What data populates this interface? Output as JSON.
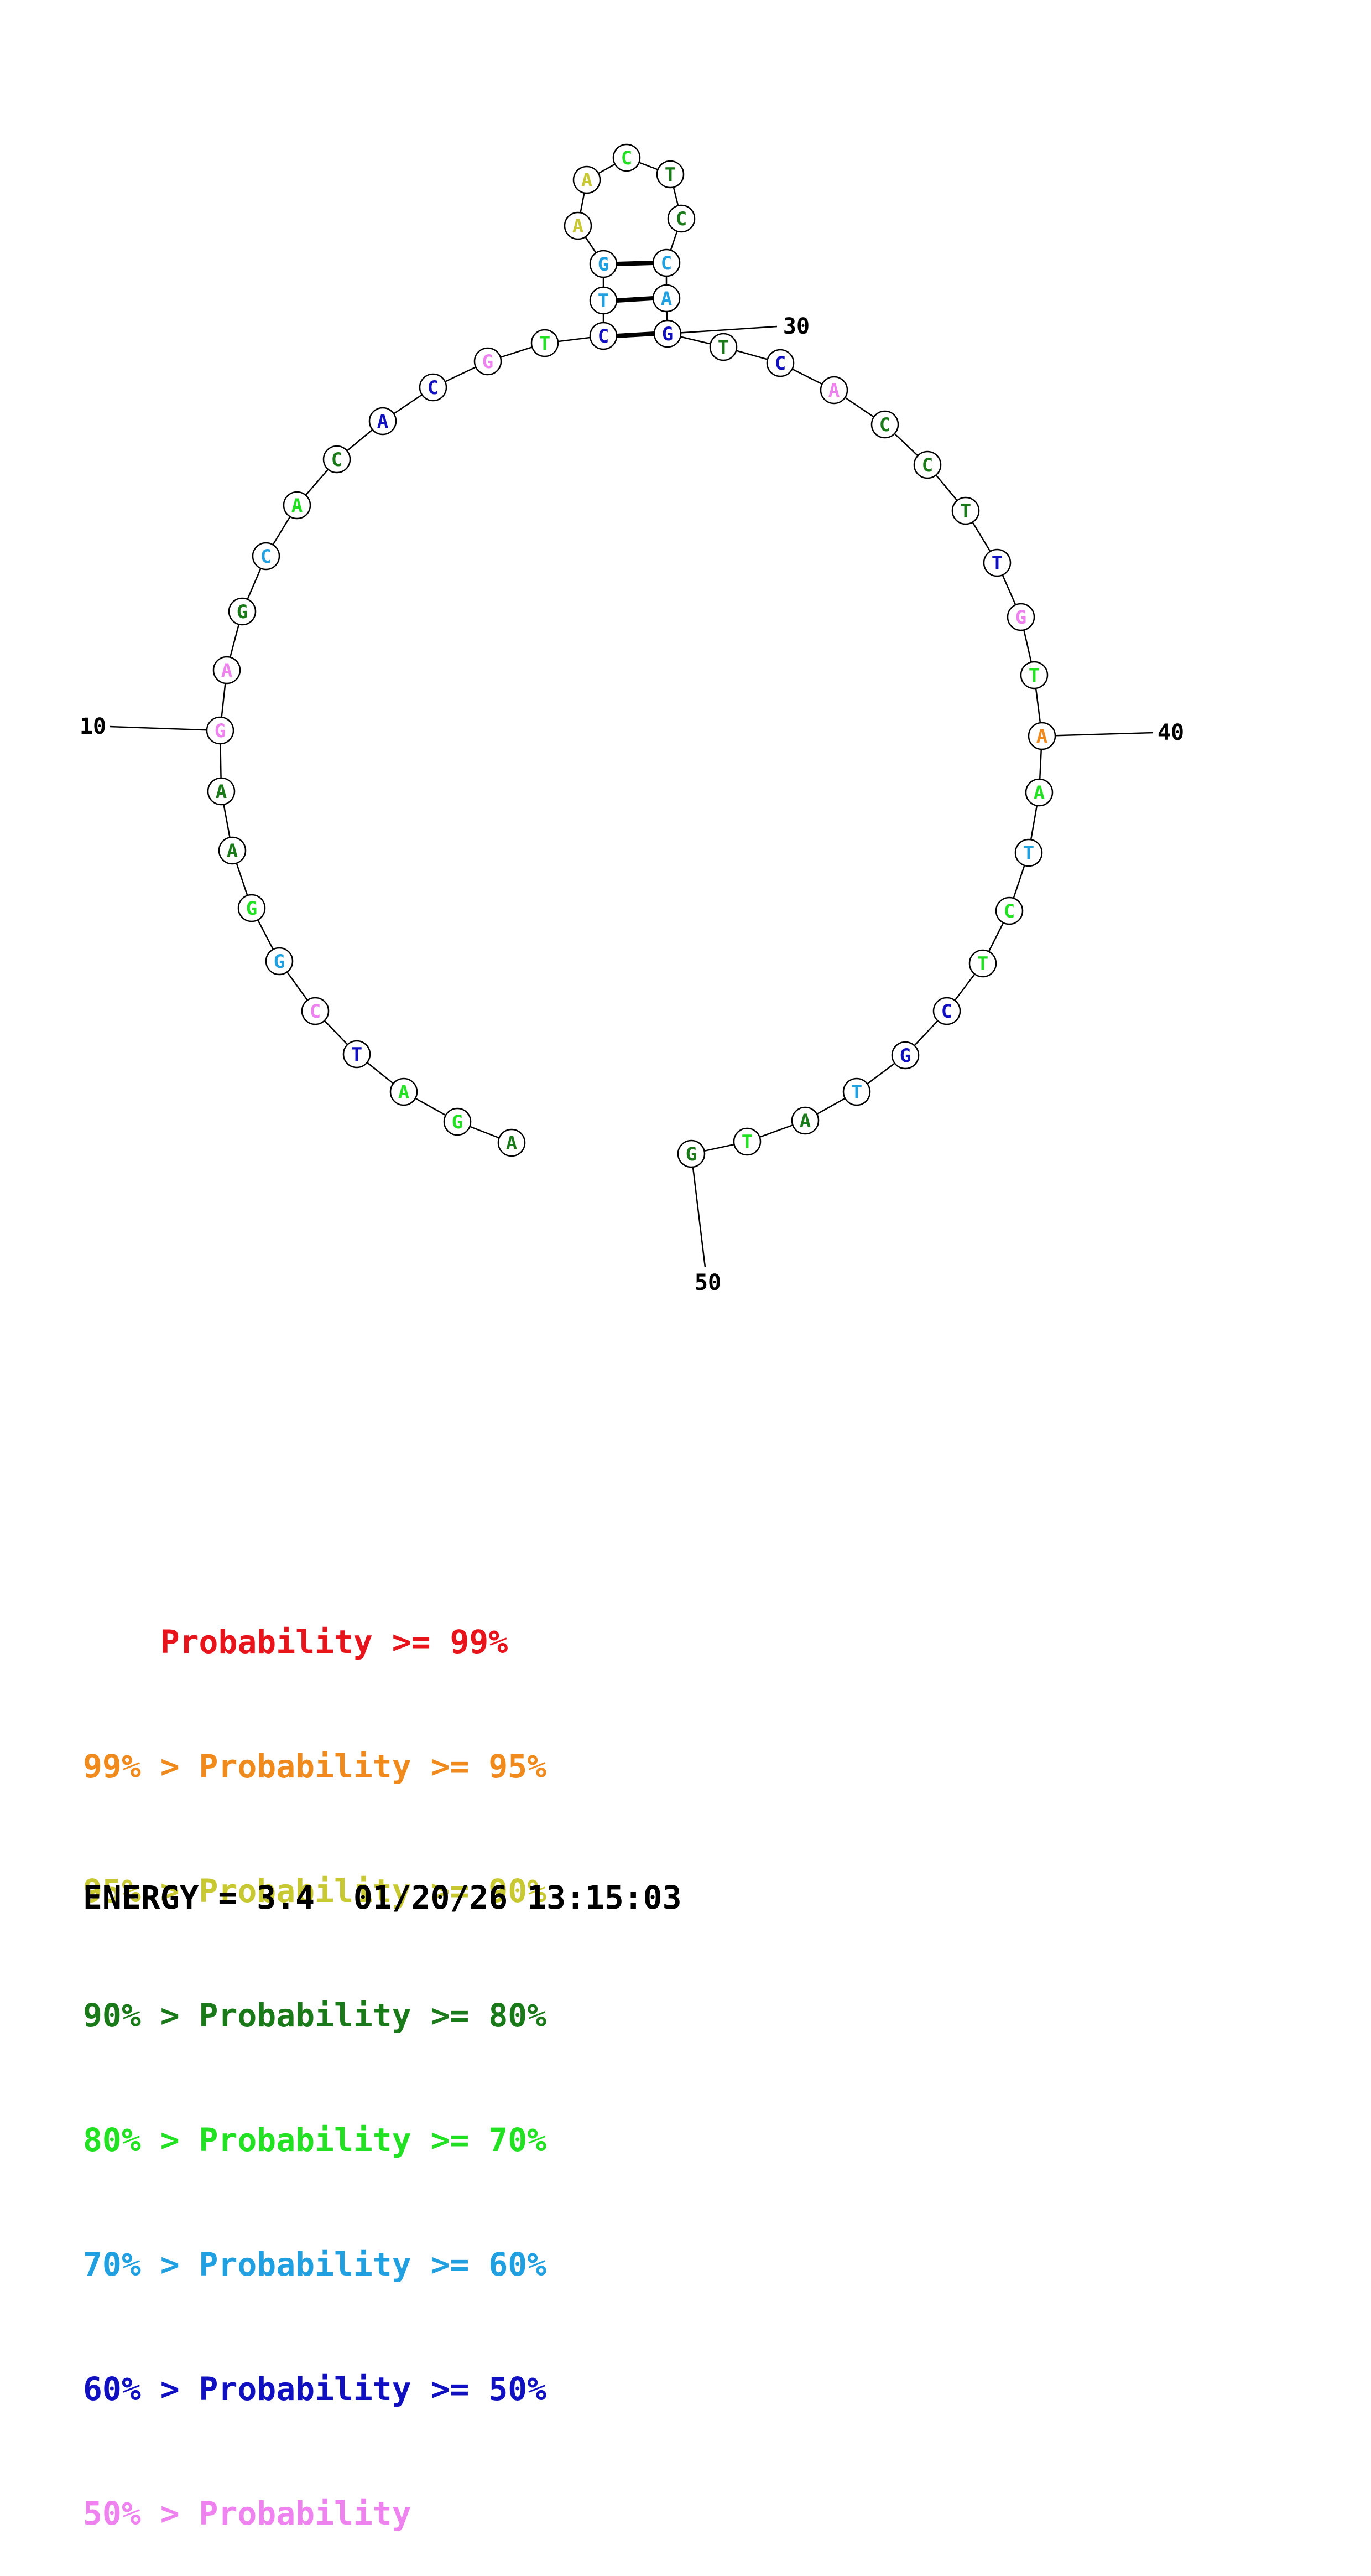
{
  "colors": {
    "p99": "#e8141c",
    "p95": "#f08a1c",
    "p90": "#c8c832",
    "p80": "#1a7a1a",
    "p70": "#22e022",
    "p60": "#20a0e0",
    "p50": "#1010c0",
    "plow": "#ee82ee"
  },
  "structure": {
    "nucleotides": [
      {
        "n": 1,
        "base": "A",
        "color": "p80"
      },
      {
        "n": 2,
        "base": "G",
        "color": "p70"
      },
      {
        "n": 3,
        "base": "A",
        "color": "p70"
      },
      {
        "n": 4,
        "base": "T",
        "color": "p50"
      },
      {
        "n": 5,
        "base": "C",
        "color": "plow"
      },
      {
        "n": 6,
        "base": "G",
        "color": "p60"
      },
      {
        "n": 7,
        "base": "G",
        "color": "p70"
      },
      {
        "n": 8,
        "base": "A",
        "color": "p80"
      },
      {
        "n": 9,
        "base": "A",
        "color": "p80"
      },
      {
        "n": 10,
        "base": "G",
        "color": "plow"
      },
      {
        "n": 11,
        "base": "A",
        "color": "plow"
      },
      {
        "n": 12,
        "base": "G",
        "color": "p80"
      },
      {
        "n": 13,
        "base": "C",
        "color": "p60"
      },
      {
        "n": 14,
        "base": "A",
        "color": "p70"
      },
      {
        "n": 15,
        "base": "C",
        "color": "p80"
      },
      {
        "n": 16,
        "base": "A",
        "color": "p50"
      },
      {
        "n": 17,
        "base": "C",
        "color": "p50"
      },
      {
        "n": 18,
        "base": "G",
        "color": "plow"
      },
      {
        "n": 19,
        "base": "T",
        "color": "p70"
      },
      {
        "n": 20,
        "base": "C",
        "color": "p50"
      },
      {
        "n": 21,
        "base": "T",
        "color": "p60"
      },
      {
        "n": 22,
        "base": "G",
        "color": "p60"
      },
      {
        "n": 23,
        "base": "A",
        "color": "p90"
      },
      {
        "n": 24,
        "base": "A",
        "color": "p90"
      },
      {
        "n": 25,
        "base": "C",
        "color": "p70"
      },
      {
        "n": 26,
        "base": "T",
        "color": "p80"
      },
      {
        "n": 27,
        "base": "C",
        "color": "p80"
      },
      {
        "n": 28,
        "base": "C",
        "color": "p60"
      },
      {
        "n": 29,
        "base": "A",
        "color": "p60"
      },
      {
        "n": 30,
        "base": "G",
        "color": "p50"
      },
      {
        "n": 31,
        "base": "T",
        "color": "p80"
      },
      {
        "n": 32,
        "base": "C",
        "color": "p50"
      },
      {
        "n": 33,
        "base": "A",
        "color": "plow"
      },
      {
        "n": 34,
        "base": "C",
        "color": "p80"
      },
      {
        "n": 35,
        "base": "C",
        "color": "p80"
      },
      {
        "n": 36,
        "base": "T",
        "color": "p80"
      },
      {
        "n": 37,
        "base": "T",
        "color": "p50"
      },
      {
        "n": 38,
        "base": "G",
        "color": "plow"
      },
      {
        "n": 39,
        "base": "T",
        "color": "p70"
      },
      {
        "n": 40,
        "base": "A",
        "color": "p95"
      },
      {
        "n": 41,
        "base": "A",
        "color": "p70"
      },
      {
        "n": 42,
        "base": "T",
        "color": "p60"
      },
      {
        "n": 43,
        "base": "C",
        "color": "p70"
      },
      {
        "n": 44,
        "base": "T",
        "color": "p70"
      },
      {
        "n": 45,
        "base": "C",
        "color": "p50"
      },
      {
        "n": 46,
        "base": "G",
        "color": "p50"
      },
      {
        "n": 47,
        "base": "T",
        "color": "p60"
      },
      {
        "n": 48,
        "base": "A",
        "color": "p80"
      },
      {
        "n": 49,
        "base": "T",
        "color": "p70"
      },
      {
        "n": 50,
        "base": "G",
        "color": "p80"
      }
    ],
    "pairs": [
      [
        20,
        30
      ],
      [
        21,
        29
      ],
      [
        22,
        28
      ]
    ],
    "position_labels": [
      "10",
      "30",
      "40",
      "50"
    ]
  },
  "legend": [
    {
      "lower": "",
      "gt": "",
      "label": "Probability",
      "ge": ">=",
      "upper": "99%",
      "color": "p99"
    },
    {
      "lower": "99%",
      "gt": ">",
      "label": "Probability",
      "ge": ">=",
      "upper": "95%",
      "color": "p95"
    },
    {
      "lower": "95%",
      "gt": ">",
      "label": "Probability",
      "ge": ">=",
      "upper": "90%",
      "color": "p90"
    },
    {
      "lower": "90%",
      "gt": ">",
      "label": "Probability",
      "ge": ">=",
      "upper": "80%",
      "color": "p80"
    },
    {
      "lower": "80%",
      "gt": ">",
      "label": "Probability",
      "ge": ">=",
      "upper": "70%",
      "color": "p70"
    },
    {
      "lower": "70%",
      "gt": ">",
      "label": "Probability",
      "ge": ">=",
      "upper": "60%",
      "color": "p60"
    },
    {
      "lower": "60%",
      "gt": ">",
      "label": "Probability",
      "ge": ">=",
      "upper": "50%",
      "color": "p50"
    },
    {
      "lower": "50%",
      "gt": ">",
      "label": "Probability",
      "ge": "",
      "upper": "",
      "color": "plow"
    }
  ],
  "footer": {
    "energy": "ENERGY = 3.4",
    "timestamp": "01/20/26 13:15:03"
  }
}
